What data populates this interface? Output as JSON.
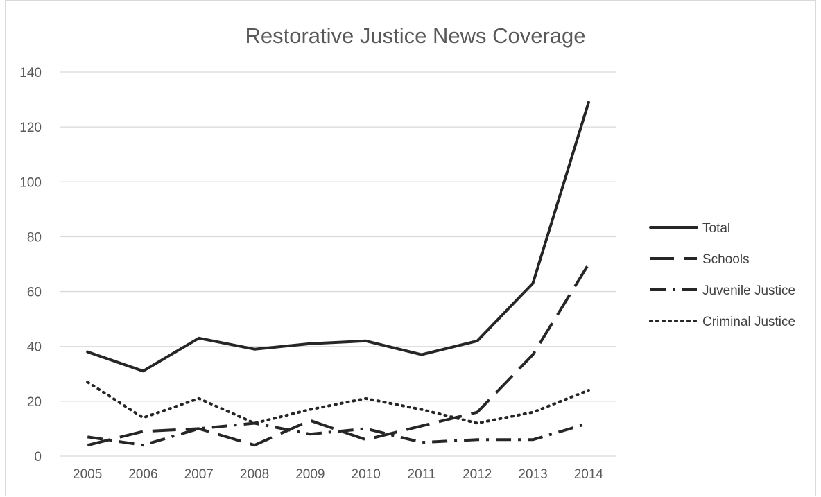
{
  "chart_data": {
    "type": "line",
    "title": "Restorative Justice News Coverage",
    "xlabel": "",
    "ylabel": "",
    "categories": [
      "2005",
      "2006",
      "2007",
      "2008",
      "2009",
      "2010",
      "2011",
      "2012",
      "2013",
      "2014"
    ],
    "ylim": [
      0,
      140
    ],
    "yticks": [
      0,
      20,
      40,
      60,
      80,
      100,
      120,
      140
    ],
    "grid": true,
    "legend_position": "right",
    "series": [
      {
        "name": "Total",
        "style": "solid",
        "color": "#262626",
        "values": [
          38,
          31,
          43,
          39,
          41,
          42,
          37,
          42,
          63,
          129
        ]
      },
      {
        "name": "Schools",
        "style": "long-dash",
        "color": "#262626",
        "values": [
          4,
          9,
          10,
          4,
          13,
          6,
          11,
          16,
          37,
          70
        ]
      },
      {
        "name": "Juvenile Justice",
        "style": "dash-dot",
        "color": "#262626",
        "values": [
          7,
          4,
          10,
          12,
          8,
          10,
          5,
          6,
          6,
          12
        ]
      },
      {
        "name": "Criminal Justice",
        "style": "dotted",
        "color": "#262626",
        "values": [
          27,
          14,
          21,
          12,
          17,
          21,
          17,
          12,
          16,
          24
        ]
      }
    ]
  }
}
